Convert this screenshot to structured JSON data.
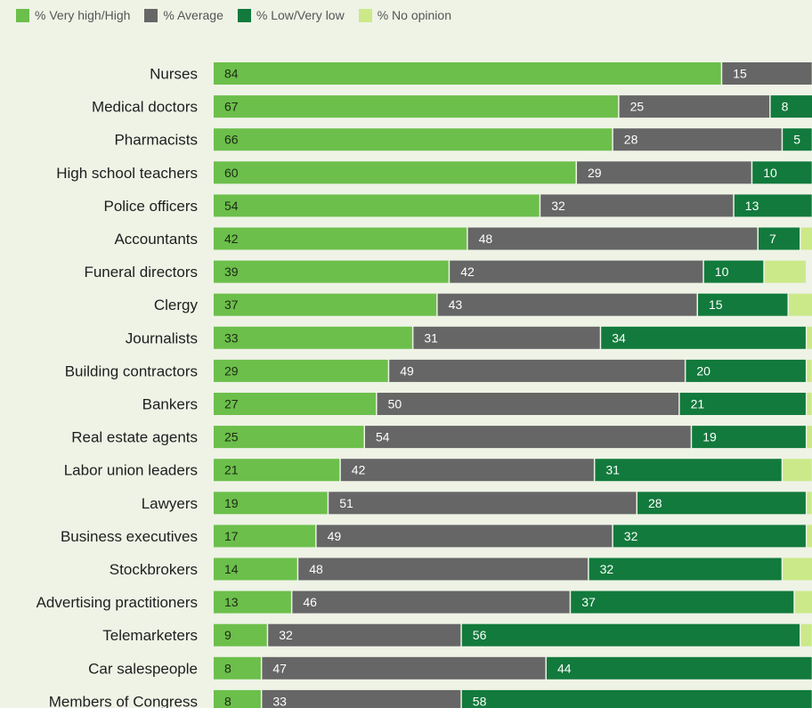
{
  "chart_data": {
    "type": "bar",
    "orientation": "horizontal",
    "stacked": true,
    "categories": [
      "Nurses",
      "Medical doctors",
      "Pharmacists",
      "High school teachers",
      "Police officers",
      "Accountants",
      "Funeral directors",
      "Clergy",
      "Journalists",
      "Building contractors",
      "Bankers",
      "Real estate agents",
      "Labor union leaders",
      "Lawyers",
      "Business executives",
      "Stockbrokers",
      "Advertising practitioners",
      "Telemarketers",
      "Car salespeople",
      "Members of Congress"
    ],
    "series": [
      {
        "name": "% Very high/High",
        "color": "#6cbf4b",
        "values": [
          84,
          67,
          66,
          60,
          54,
          42,
          39,
          37,
          33,
          29,
          27,
          25,
          21,
          19,
          17,
          14,
          13,
          9,
          8,
          8
        ]
      },
      {
        "name": "% Average",
        "color": "#666666",
        "values": [
          15,
          25,
          28,
          29,
          32,
          48,
          42,
          43,
          31,
          49,
          50,
          54,
          42,
          51,
          49,
          48,
          46,
          32,
          47,
          33
        ]
      },
      {
        "name": "% Low/Very low",
        "color": "#127a3c",
        "values": [
          1,
          8,
          5,
          10,
          13,
          7,
          10,
          15,
          34,
          20,
          21,
          19,
          31,
          28,
          32,
          32,
          37,
          56,
          44,
          58
        ]
      },
      {
        "name": "% No opinion",
        "color": "#cce98a",
        "values": [
          0,
          0,
          1,
          1,
          1,
          3,
          7,
          5,
          2,
          1,
          1,
          2,
          5,
          1,
          2,
          6,
          4,
          2,
          1,
          1
        ]
      }
    ],
    "value_labels": [
      [
        "84",
        "15",
        "",
        ""
      ],
      [
        "67",
        "25",
        "8",
        ""
      ],
      [
        "66",
        "28",
        "5",
        ""
      ],
      [
        "60",
        "29",
        "10",
        ""
      ],
      [
        "54",
        "32",
        "13",
        ""
      ],
      [
        "42",
        "48",
        "7",
        ""
      ],
      [
        "39",
        "42",
        "10",
        ""
      ],
      [
        "37",
        "43",
        "15",
        ""
      ],
      [
        "33",
        "31",
        "34",
        ""
      ],
      [
        "29",
        "49",
        "20",
        ""
      ],
      [
        "27",
        "50",
        "21",
        ""
      ],
      [
        "25",
        "54",
        "19",
        ""
      ],
      [
        "21",
        "42",
        "31",
        ""
      ],
      [
        "19",
        "51",
        "28",
        ""
      ],
      [
        "17",
        "49",
        "32",
        ""
      ],
      [
        "14",
        "48",
        "32",
        ""
      ],
      [
        "13",
        "46",
        "37",
        ""
      ],
      [
        "9",
        "32",
        "56",
        ""
      ],
      [
        "8",
        "47",
        "44",
        ""
      ],
      [
        "8",
        "33",
        "58",
        ""
      ]
    ],
    "xlim": [
      0,
      100
    ],
    "title": "",
    "xlabel": "",
    "ylabel": "",
    "grid": false,
    "legend_position": "top-left"
  }
}
